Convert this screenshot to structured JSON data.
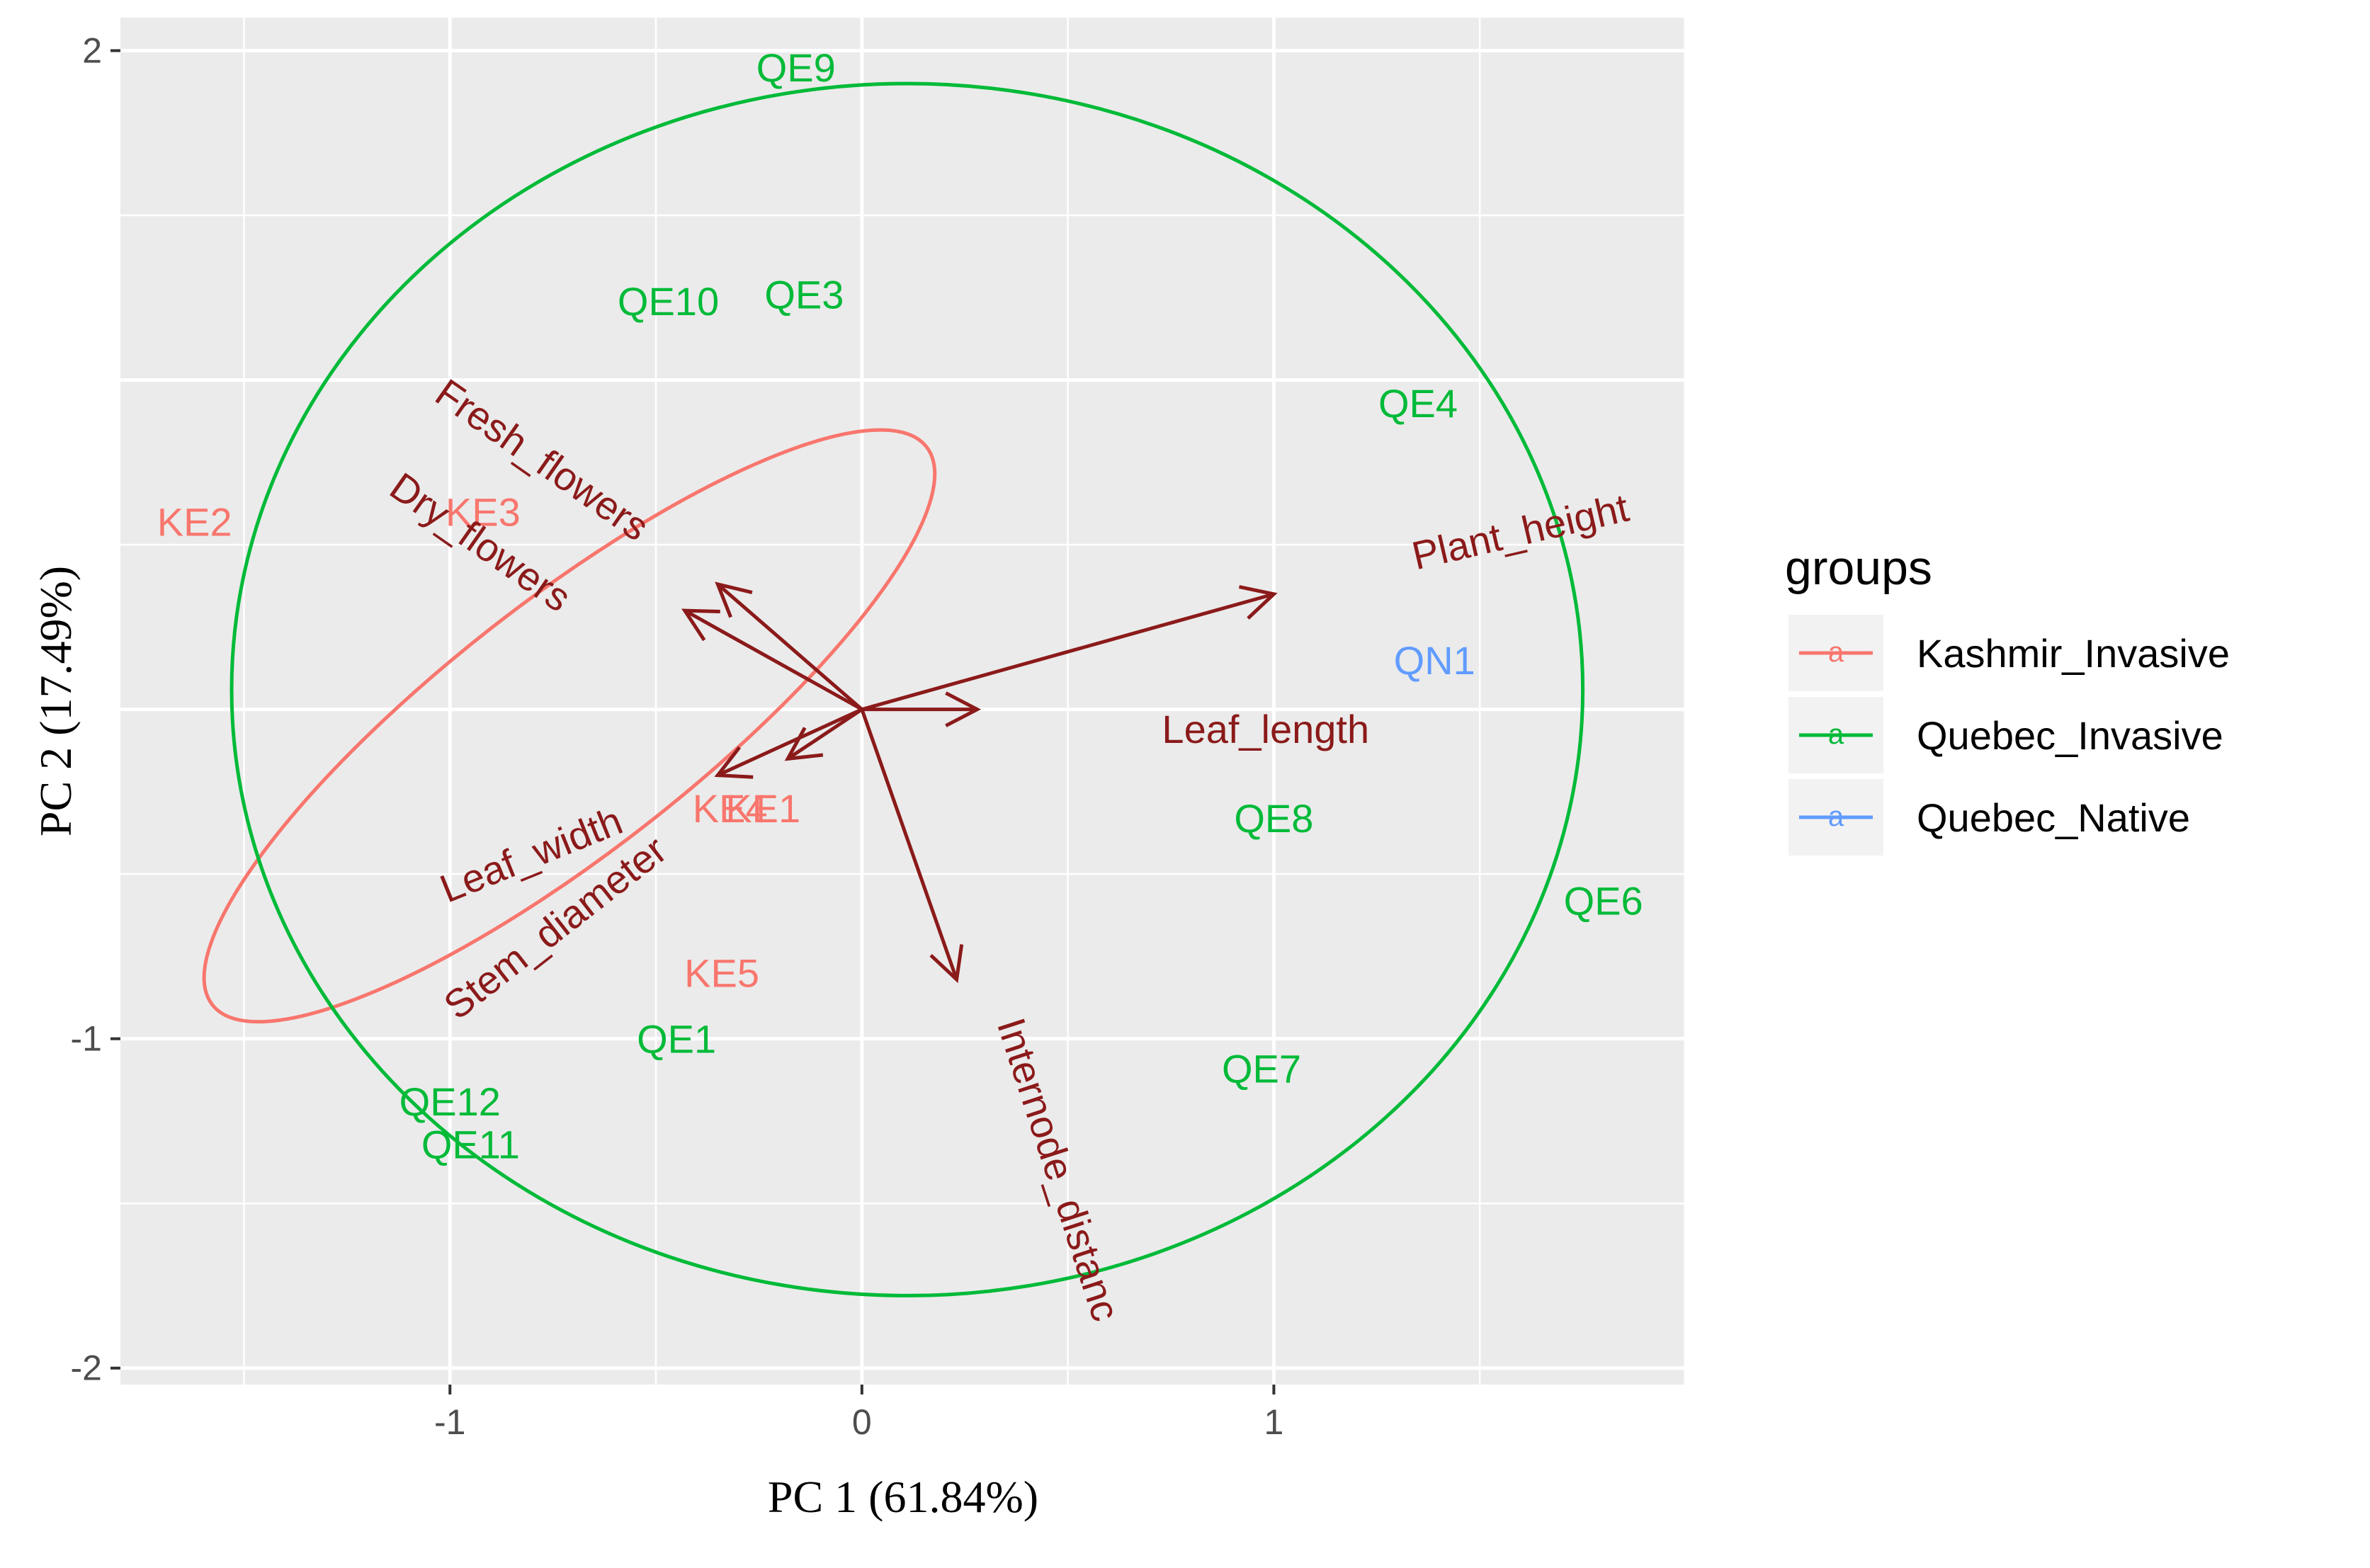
{
  "chart_data": {
    "type": "scatter",
    "subtype": "pca-biplot",
    "xlabel": "PC 1 (61.84%)",
    "ylabel": "PC 2 (17.49%)",
    "xlim": [
      -1.8,
      2.0
    ],
    "ylim": [
      -2.05,
      2.1
    ],
    "x_ticks": [
      -1,
      0,
      1
    ],
    "y_ticks": [
      -2,
      -1,
      2
    ],
    "grid": true,
    "legend": {
      "title": "groups",
      "placement": "right",
      "key_glyph": "a",
      "entries": [
        "Kashmir_Invasive",
        "Quebec_Invasive",
        "Quebec_Native"
      ]
    },
    "series": [
      {
        "name": "Kashmir_Invasive",
        "color": "#F8766D",
        "points": [
          {
            "label": "KE2",
            "x": -1.62,
            "y": 0.57
          },
          {
            "label": "KE3",
            "x": -0.92,
            "y": 0.6
          },
          {
            "label": "KE4",
            "x": -0.32,
            "y": -0.3
          },
          {
            "label": "KE1",
            "x": -0.24,
            "y": -0.3
          },
          {
            "label": "KE5",
            "x": -0.34,
            "y": -0.8
          }
        ],
        "ellipse": {
          "cx": -0.71,
          "cy": -0.05,
          "rx": 1.1,
          "ry": 0.38,
          "angle_deg": -38
        }
      },
      {
        "name": "Quebec_Invasive",
        "color": "#00BA38",
        "points": [
          {
            "label": "QE9",
            "x": -0.16,
            "y": 1.95
          },
          {
            "label": "QE3",
            "x": -0.14,
            "y": 1.26
          },
          {
            "label": "QE10",
            "x": -0.47,
            "y": 1.24
          },
          {
            "label": "QE4",
            "x": 1.35,
            "y": 0.93
          },
          {
            "label": "QE8",
            "x": 1.0,
            "y": -0.33
          },
          {
            "label": "QE6",
            "x": 1.8,
            "y": -0.58
          },
          {
            "label": "QE7",
            "x": 0.97,
            "y": -1.09
          },
          {
            "label": "QE1",
            "x": -0.45,
            "y": -1.0
          },
          {
            "label": "QE12",
            "x": -1.0,
            "y": -1.19
          },
          {
            "label": "QE11",
            "x": -0.95,
            "y": -1.32
          }
        ],
        "ellipse": {
          "cx": 0.11,
          "cy": 0.06,
          "rx": 1.64,
          "ry": 1.84,
          "angle_deg": 0
        }
      },
      {
        "name": "Quebec_Native",
        "color": "#619CFF",
        "points": [
          {
            "label": "QN1",
            "x": 1.39,
            "y": 0.15
          }
        ]
      }
    ],
    "variables": [
      {
        "name": "Plant_height",
        "x": 1.0,
        "y": 0.35,
        "label_x": 1.6,
        "label_y": 0.53,
        "label_angle": -13
      },
      {
        "name": "Leaf_length",
        "x": 0.28,
        "y": 0.0,
        "label_x": 0.98,
        "label_y": -0.07,
        "label_angle": 0
      },
      {
        "name": "Fresh_flowers",
        "x": -0.43,
        "y": 0.3,
        "label_x": -0.78,
        "label_y": 0.75,
        "label_angle": 35
      },
      {
        "name": "Dry_flowers",
        "x": -0.35,
        "y": 0.38,
        "label_x": -0.93,
        "label_y": 0.5,
        "label_angle": 35
      },
      {
        "name": "Leaf_width",
        "x": -0.35,
        "y": -0.2,
        "label_x": -0.8,
        "label_y": -0.45,
        "label_angle": -22
      },
      {
        "name": "Stem_diameter",
        "x": -0.18,
        "y": -0.15,
        "label_x": -0.74,
        "label_y": -0.67,
        "label_angle": -38
      },
      {
        "name": "Internode_distance",
        "x": 0.23,
        "y": -0.82,
        "label_x": 0.47,
        "label_y": -1.4,
        "label_angle": 72,
        "visible_text": "Internode_distanc"
      }
    ],
    "variable_color": "#8B1A1A"
  }
}
